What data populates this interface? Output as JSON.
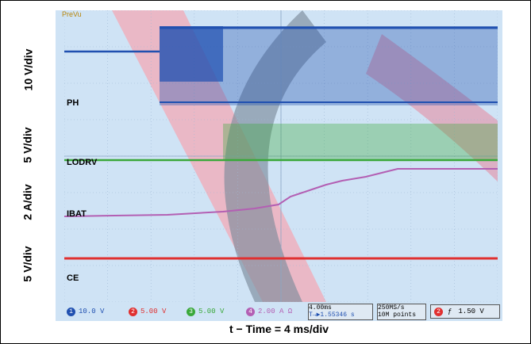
{
  "chart_data": {
    "type": "line",
    "xlabel": "t − Time = 4 ms/div",
    "ylabels": [
      "10 V/div",
      "5 V/div",
      "2 A/div",
      "5 V/div"
    ],
    "series": [
      {
        "name": "PH",
        "color": "#2050b0"
      },
      {
        "name": "LODRV",
        "color": "#3aa83a"
      },
      {
        "name": "IBAT",
        "color": "#b35fb3"
      },
      {
        "name": "CE",
        "color": "#e03030"
      }
    ],
    "scope_status": {
      "preview": "PreVu",
      "ch1_scale": "10.0 V",
      "ch2_scale": "5.00 V",
      "ch3_scale": "5.00 V",
      "ch4_scale": "2.00 A Ω",
      "timebase": "4.00ms",
      "trigger_pos": "T→▶1.55346 s",
      "sample_rate": "250MS/s",
      "record_length": "10M points",
      "trigger_ch": "2",
      "trigger_slope": "ƒ",
      "trigger_level": "1.50 V"
    },
    "colors": {
      "screen_bg": "#cfe3f5",
      "grid": "#9db7d4"
    }
  }
}
